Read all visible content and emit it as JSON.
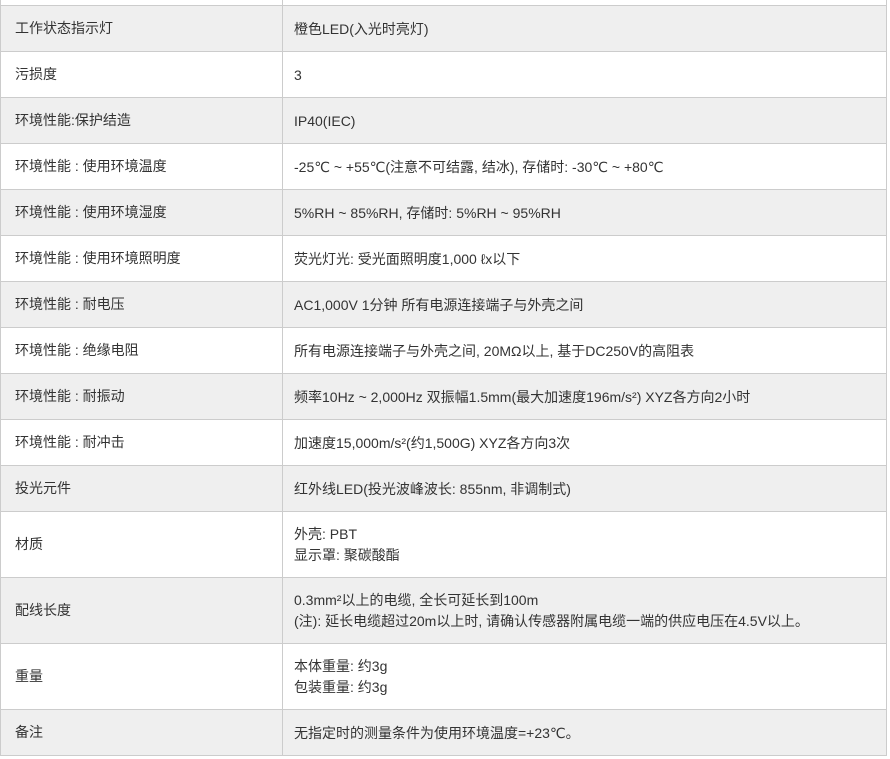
{
  "table": {
    "colors": {
      "row_bg": "#ffffff",
      "row_alt_bg": "#efefef",
      "border": "#cccccc",
      "text": "#333333"
    },
    "rows": [
      {
        "label": "工作状态指示灯",
        "value_lines": [
          "橙色LED(入光时亮灯)"
        ]
      },
      {
        "label": "污损度",
        "value_lines": [
          "3"
        ]
      },
      {
        "label": "环境性能:保护结造",
        "value_lines": [
          "IP40(IEC)"
        ]
      },
      {
        "label": "环境性能 : 使用环境温度",
        "value_lines": [
          "-25℃ ~ +55℃(注意不可结露, 结冰), 存储时: -30℃ ~ +80℃"
        ]
      },
      {
        "label": "环境性能 : 使用环境湿度",
        "value_lines": [
          "5%RH ~ 85%RH, 存储时: 5%RH ~ 95%RH"
        ]
      },
      {
        "label": "环境性能 : 使用环境照明度",
        "value_lines": [
          "荧光灯光: 受光面照明度1,000 ℓx以下"
        ]
      },
      {
        "label": "环境性能 : 耐电压",
        "value_lines": [
          "AC1,000V 1分钟 所有电源连接端子与外壳之间"
        ]
      },
      {
        "label": "环境性能 : 绝缘电阻",
        "value_lines": [
          "所有电源连接端子与外壳之间, 20MΩ以上, 基于DC250V的高阻表"
        ]
      },
      {
        "label": "环境性能 : 耐振动",
        "value_lines": [
          "频率10Hz ~ 2,000Hz 双振幅1.5mm(最大加速度196m/s²) XYZ各方向2小时"
        ]
      },
      {
        "label": "环境性能 : 耐冲击",
        "value_lines": [
          "加速度15,000m/s²(约1,500G) XYZ各方向3次"
        ]
      },
      {
        "label": "投光元件",
        "value_lines": [
          "红外线LED(投光波峰波长: 855nm, 非调制式)"
        ]
      },
      {
        "label": "材质",
        "value_lines": [
          "外壳: PBT",
          "显示罩: 聚碳酸酯"
        ]
      },
      {
        "label": "配线长度",
        "value_lines": [
          "0.3mm²以上的电缆, 全长可延长到100m",
          "(注): 延长电缆超过20m以上时, 请确认传感器附属电缆一端的供应电压在4.5V以上。"
        ]
      },
      {
        "label": "重量",
        "value_lines": [
          "本体重量: 约3g",
          "包装重量: 约3g"
        ]
      },
      {
        "label": "备注",
        "value_lines": [
          "无指定时的测量条件为使用环境温度=+23℃。"
        ]
      }
    ]
  }
}
